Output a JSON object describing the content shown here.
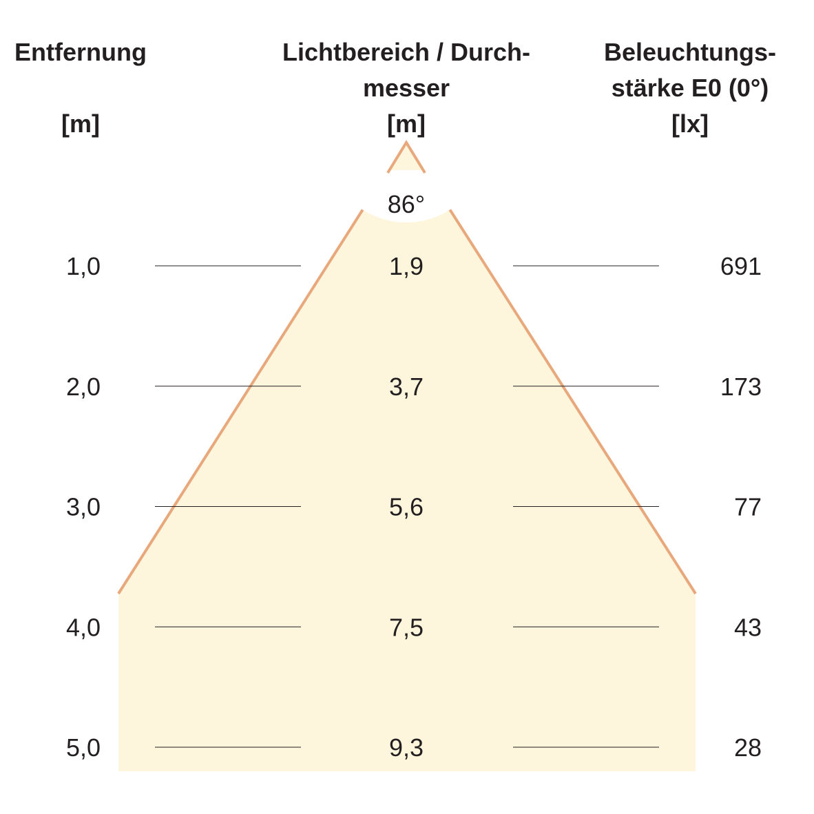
{
  "header": {
    "distance": [
      "Entfernung",
      "[m]"
    ],
    "diameter": [
      "Lichtbereich / Durch-",
      "messer",
      "[m]"
    ],
    "illuminance": [
      "Beleuchtungs-",
      "stärke E0 (0°)",
      "[lx]"
    ]
  },
  "angle": "86°",
  "rows": [
    [
      "1,0",
      "1,9",
      "691"
    ],
    [
      "2,0",
      "3,7",
      "173"
    ],
    [
      "3,0",
      "5,6",
      "77"
    ],
    [
      "4,0",
      "7,5",
      "43"
    ],
    [
      "5,0",
      "9,3",
      "28"
    ]
  ]
}
